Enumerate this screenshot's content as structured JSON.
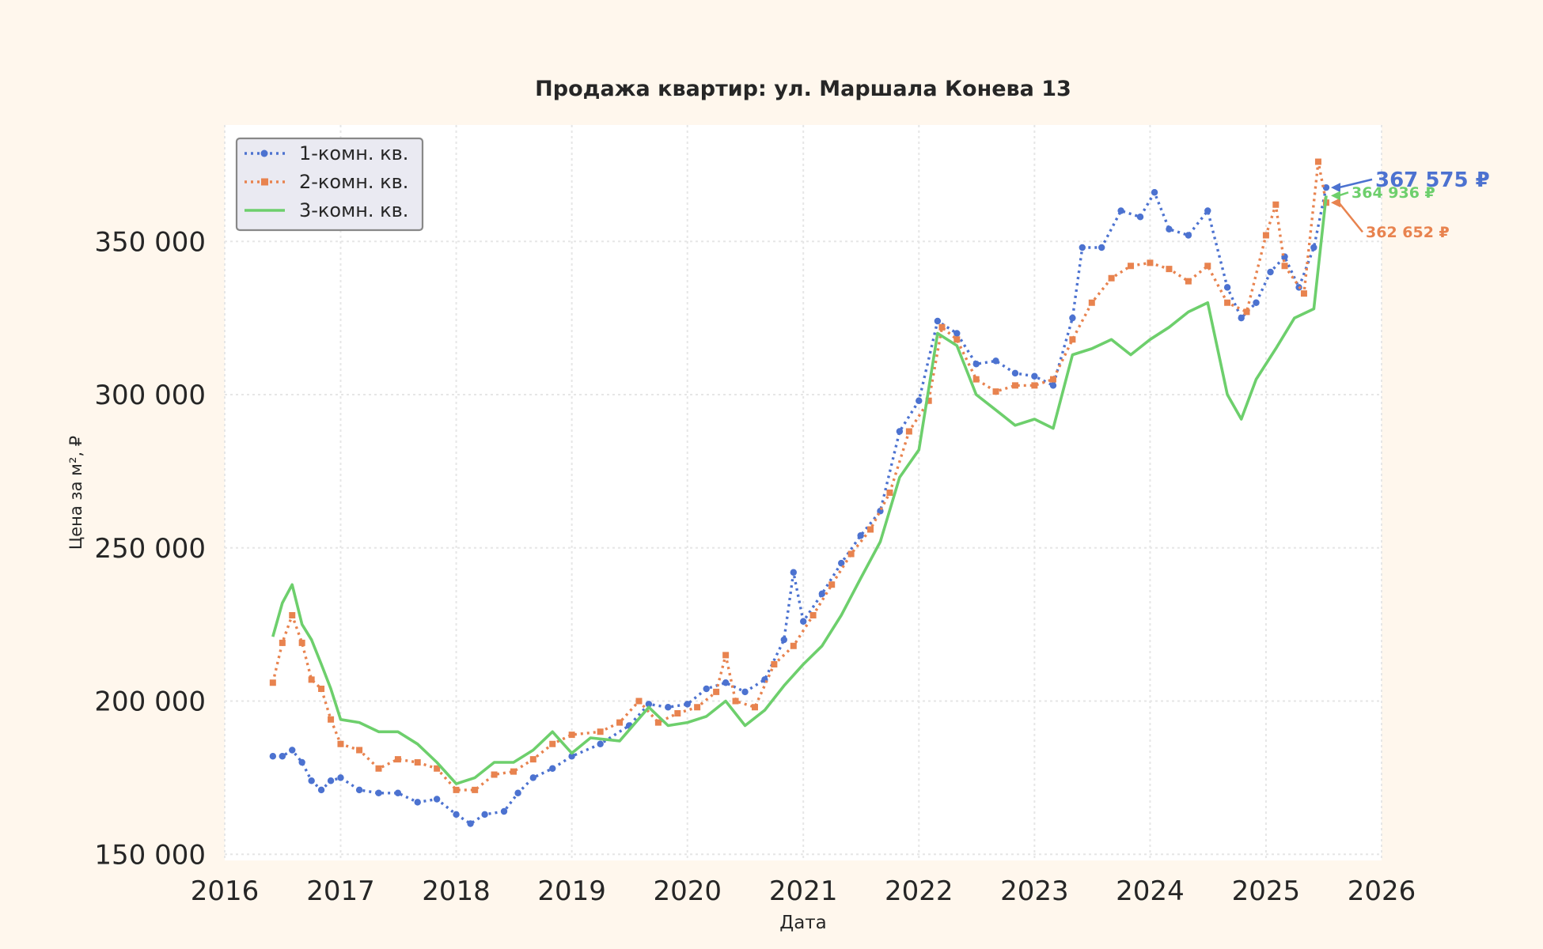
{
  "chart_data": {
    "type": "line",
    "title": "Продажа квартир: ул. Маршала Конева 13",
    "xlabel": "Дата",
    "ylabel": "Цена за м², ₽",
    "xlim": [
      "2016-01-01",
      "2026-01-01"
    ],
    "ylim": [
      148000,
      388000
    ],
    "x_ticks": [
      "2016",
      "2017",
      "2018",
      "2019",
      "2020",
      "2021",
      "2022",
      "2023",
      "2024",
      "2025",
      "2026"
    ],
    "y_ticks": [
      150000,
      200000,
      250000,
      300000,
      350000
    ],
    "y_tick_labels": [
      "150 000",
      "200 000",
      "250 000",
      "300 000",
      "350 000"
    ],
    "grid": true,
    "legend_position": "top-left",
    "series": [
      {
        "name": "1-комн. кв.",
        "color": "#4c72d0",
        "style": "dotted-circle",
        "final_label": "367 575 ₽",
        "final_value": 367575,
        "points": [
          [
            "2016-06-01",
            182000
          ],
          [
            "2016-07-01",
            182000
          ],
          [
            "2016-08-01",
            184000
          ],
          [
            "2016-09-01",
            180000
          ],
          [
            "2016-10-01",
            174000
          ],
          [
            "2016-11-01",
            171000
          ],
          [
            "2016-12-01",
            174000
          ],
          [
            "2017-01-01",
            175000
          ],
          [
            "2017-03-01",
            171000
          ],
          [
            "2017-05-01",
            170000
          ],
          [
            "2017-07-01",
            170000
          ],
          [
            "2017-09-01",
            167000
          ],
          [
            "2017-11-01",
            168000
          ],
          [
            "2018-01-01",
            163000
          ],
          [
            "2018-02-15",
            160000
          ],
          [
            "2018-04-01",
            163000
          ],
          [
            "2018-06-01",
            164000
          ],
          [
            "2018-07-15",
            170000
          ],
          [
            "2018-09-01",
            175000
          ],
          [
            "2018-11-01",
            178000
          ],
          [
            "2019-01-01",
            182000
          ],
          [
            "2019-04-01",
            186000
          ],
          [
            "2019-07-01",
            192000
          ],
          [
            "2019-09-01",
            199000
          ],
          [
            "2019-11-01",
            198000
          ],
          [
            "2020-01-01",
            199000
          ],
          [
            "2020-03-01",
            204000
          ],
          [
            "2020-05-01",
            206000
          ],
          [
            "2020-07-01",
            203000
          ],
          [
            "2020-09-01",
            207000
          ],
          [
            "2020-11-01",
            220000
          ],
          [
            "2020-12-01",
            242000
          ],
          [
            "2021-01-01",
            226000
          ],
          [
            "2021-03-01",
            235000
          ],
          [
            "2021-05-01",
            245000
          ],
          [
            "2021-07-01",
            254000
          ],
          [
            "2021-09-01",
            262000
          ],
          [
            "2021-11-01",
            288000
          ],
          [
            "2022-01-01",
            298000
          ],
          [
            "2022-03-01",
            324000
          ],
          [
            "2022-05-01",
            320000
          ],
          [
            "2022-07-01",
            310000
          ],
          [
            "2022-09-01",
            311000
          ],
          [
            "2022-11-01",
            307000
          ],
          [
            "2023-01-01",
            306000
          ],
          [
            "2023-03-01",
            303000
          ],
          [
            "2023-05-01",
            325000
          ],
          [
            "2023-06-01",
            348000
          ],
          [
            "2023-08-01",
            348000
          ],
          [
            "2023-10-01",
            360000
          ],
          [
            "2023-12-01",
            358000
          ],
          [
            "2024-01-15",
            366000
          ],
          [
            "2024-03-01",
            354000
          ],
          [
            "2024-05-01",
            352000
          ],
          [
            "2024-07-01",
            360000
          ],
          [
            "2024-09-01",
            335000
          ],
          [
            "2024-10-15",
            325000
          ],
          [
            "2024-12-01",
            330000
          ],
          [
            "2025-01-15",
            340000
          ],
          [
            "2025-03-01",
            345000
          ],
          [
            "2025-04-15",
            335000
          ],
          [
            "2025-06-01",
            348000
          ],
          [
            "2025-07-10",
            367575
          ]
        ]
      },
      {
        "name": "2-комн. кв.",
        "color": "#e8834f",
        "style": "dotted-square",
        "final_label": "362 652 ₽",
        "final_value": 362652,
        "points": [
          [
            "2016-06-01",
            206000
          ],
          [
            "2016-07-01",
            219000
          ],
          [
            "2016-08-01",
            228000
          ],
          [
            "2016-09-01",
            219000
          ],
          [
            "2016-10-01",
            207000
          ],
          [
            "2016-11-01",
            204000
          ],
          [
            "2016-12-01",
            194000
          ],
          [
            "2017-01-01",
            186000
          ],
          [
            "2017-03-01",
            184000
          ],
          [
            "2017-05-01",
            178000
          ],
          [
            "2017-07-01",
            181000
          ],
          [
            "2017-09-01",
            180000
          ],
          [
            "2017-11-01",
            178000
          ],
          [
            "2018-01-01",
            171000
          ],
          [
            "2018-03-01",
            171000
          ],
          [
            "2018-05-01",
            176000
          ],
          [
            "2018-07-01",
            177000
          ],
          [
            "2018-09-01",
            181000
          ],
          [
            "2018-11-01",
            186000
          ],
          [
            "2019-01-01",
            189000
          ],
          [
            "2019-04-01",
            190000
          ],
          [
            "2019-06-01",
            193000
          ],
          [
            "2019-08-01",
            200000
          ],
          [
            "2019-10-01",
            193000
          ],
          [
            "2019-12-01",
            196000
          ],
          [
            "2020-02-01",
            198000
          ],
          [
            "2020-04-01",
            203000
          ],
          [
            "2020-05-01",
            215000
          ],
          [
            "2020-06-01",
            200000
          ],
          [
            "2020-08-01",
            198000
          ],
          [
            "2020-10-01",
            212000
          ],
          [
            "2020-12-01",
            218000
          ],
          [
            "2021-02-01",
            228000
          ],
          [
            "2021-04-01",
            238000
          ],
          [
            "2021-06-01",
            248000
          ],
          [
            "2021-08-01",
            256000
          ],
          [
            "2021-10-01",
            268000
          ],
          [
            "2021-12-01",
            288000
          ],
          [
            "2022-02-01",
            298000
          ],
          [
            "2022-03-15",
            322000
          ],
          [
            "2022-05-01",
            318000
          ],
          [
            "2022-07-01",
            305000
          ],
          [
            "2022-09-01",
            301000
          ],
          [
            "2022-11-01",
            303000
          ],
          [
            "2023-01-01",
            303000
          ],
          [
            "2023-03-01",
            305000
          ],
          [
            "2023-05-01",
            318000
          ],
          [
            "2023-07-01",
            330000
          ],
          [
            "2023-09-01",
            338000
          ],
          [
            "2023-11-01",
            342000
          ],
          [
            "2024-01-01",
            343000
          ],
          [
            "2024-03-01",
            341000
          ],
          [
            "2024-05-01",
            337000
          ],
          [
            "2024-07-01",
            342000
          ],
          [
            "2024-09-01",
            330000
          ],
          [
            "2024-11-01",
            327000
          ],
          [
            "2025-01-01",
            352000
          ],
          [
            "2025-02-01",
            362000
          ],
          [
            "2025-03-01",
            342000
          ],
          [
            "2025-05-01",
            333000
          ],
          [
            "2025-06-15",
            376000
          ],
          [
            "2025-07-10",
            362652
          ]
        ]
      },
      {
        "name": "3-комн. кв.",
        "color": "#6dcf6c",
        "style": "solid",
        "final_label": "364 936 ₽",
        "final_value": 364936,
        "points": [
          [
            "2016-06-01",
            221000
          ],
          [
            "2016-07-01",
            232000
          ],
          [
            "2016-08-01",
            238000
          ],
          [
            "2016-09-01",
            225000
          ],
          [
            "2016-10-01",
            220000
          ],
          [
            "2016-11-01",
            212000
          ],
          [
            "2016-12-01",
            204000
          ],
          [
            "2017-01-01",
            194000
          ],
          [
            "2017-03-01",
            193000
          ],
          [
            "2017-05-01",
            190000
          ],
          [
            "2017-07-01",
            190000
          ],
          [
            "2017-09-01",
            186000
          ],
          [
            "2017-11-01",
            180000
          ],
          [
            "2018-01-01",
            173000
          ],
          [
            "2018-03-01",
            175000
          ],
          [
            "2018-05-01",
            180000
          ],
          [
            "2018-07-01",
            180000
          ],
          [
            "2018-09-01",
            184000
          ],
          [
            "2018-11-01",
            190000
          ],
          [
            "2019-01-01",
            183000
          ],
          [
            "2019-03-01",
            188000
          ],
          [
            "2019-06-01",
            187000
          ],
          [
            "2019-09-01",
            198000
          ],
          [
            "2019-11-01",
            192000
          ],
          [
            "2020-01-01",
            193000
          ],
          [
            "2020-03-01",
            195000
          ],
          [
            "2020-05-01",
            200000
          ],
          [
            "2020-07-01",
            192000
          ],
          [
            "2020-09-01",
            197000
          ],
          [
            "2020-11-01",
            205000
          ],
          [
            "2021-01-01",
            212000
          ],
          [
            "2021-03-01",
            218000
          ],
          [
            "2021-05-01",
            228000
          ],
          [
            "2021-07-01",
            240000
          ],
          [
            "2021-09-01",
            252000
          ],
          [
            "2021-11-01",
            273000
          ],
          [
            "2022-01-01",
            282000
          ],
          [
            "2022-03-01",
            320000
          ],
          [
            "2022-05-01",
            316000
          ],
          [
            "2022-07-01",
            300000
          ],
          [
            "2022-09-01",
            295000
          ],
          [
            "2022-11-01",
            290000
          ],
          [
            "2023-01-01",
            292000
          ],
          [
            "2023-03-01",
            289000
          ],
          [
            "2023-05-01",
            313000
          ],
          [
            "2023-07-01",
            315000
          ],
          [
            "2023-09-01",
            318000
          ],
          [
            "2023-11-01",
            313000
          ],
          [
            "2024-01-01",
            318000
          ],
          [
            "2024-03-01",
            322000
          ],
          [
            "2024-05-01",
            327000
          ],
          [
            "2024-07-01",
            330000
          ],
          [
            "2024-09-01",
            300000
          ],
          [
            "2024-10-15",
            292000
          ],
          [
            "2024-12-01",
            305000
          ],
          [
            "2025-02-01",
            315000
          ],
          [
            "2025-04-01",
            325000
          ],
          [
            "2025-06-01",
            328000
          ],
          [
            "2025-07-10",
            364936
          ]
        ]
      }
    ]
  }
}
